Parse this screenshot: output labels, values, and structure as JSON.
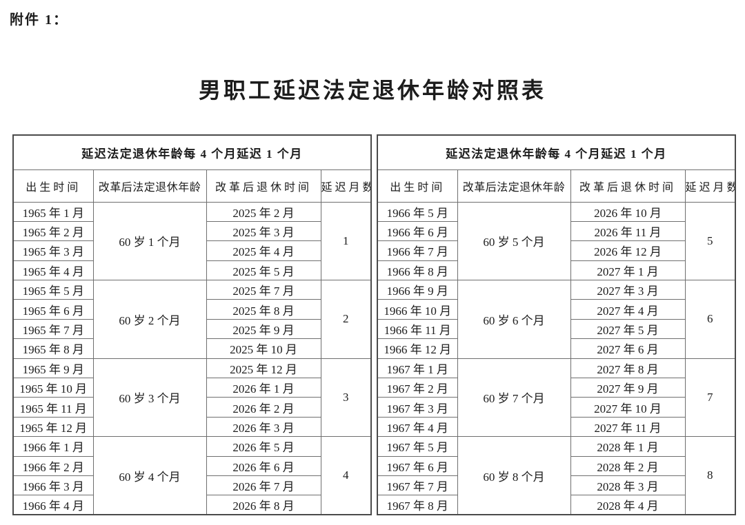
{
  "page": {
    "attachment_label": "附件 1：",
    "title": "男职工延迟法定退休年龄对照表",
    "background_color": "#ffffff",
    "text_color": "#1c1c1c",
    "border_color": "#6e6e6e"
  },
  "tables": [
    {
      "header": "延迟法定退休年龄每 4 个月延迟 1 个月",
      "columns": [
        "出生时间",
        "改革后法定退休年龄",
        "改革后退休时间",
        "延迟月数"
      ],
      "groups": [
        {
          "birth_months": [
            "1965 年 1 月",
            "1965 年 2 月",
            "1965 年 3 月",
            "1965 年 4 月"
          ],
          "retirement_age": "60 岁 1 个月",
          "retirement_months": [
            "2025 年 2 月",
            "2025 年 3 月",
            "2025 年 4 月",
            "2025 年 5 月"
          ],
          "delay_months": "1"
        },
        {
          "birth_months": [
            "1965 年 5 月",
            "1965 年 6 月",
            "1965 年 7 月",
            "1965 年 8 月"
          ],
          "retirement_age": "60 岁 2 个月",
          "retirement_months": [
            "2025 年 7 月",
            "2025 年 8 月",
            "2025 年 9 月",
            "2025 年 10 月"
          ],
          "delay_months": "2"
        },
        {
          "birth_months": [
            "1965 年 9 月",
            "1965 年 10 月",
            "1965 年 11 月",
            "1965 年 12 月"
          ],
          "retirement_age": "60 岁 3 个月",
          "retirement_months": [
            "2025 年 12 月",
            "2026 年 1 月",
            "2026 年 2 月",
            "2026 年 3 月"
          ],
          "delay_months": "3"
        },
        {
          "birth_months": [
            "1966 年 1 月",
            "1966 年 2 月",
            "1966 年 3 月",
            "1966 年 4 月"
          ],
          "retirement_age": "60 岁 4 个月",
          "retirement_months": [
            "2026 年 5 月",
            "2026 年 6 月",
            "2026 年 7 月",
            "2026 年 8 月"
          ],
          "delay_months": "4"
        }
      ]
    },
    {
      "header": "延迟法定退休年龄每 4 个月延迟 1 个月",
      "columns": [
        "出生时间",
        "改革后法定退休年龄",
        "改革后退休时间",
        "延迟月数"
      ],
      "groups": [
        {
          "birth_months": [
            "1966 年 5 月",
            "1966 年 6 月",
            "1966 年 7 月",
            "1966 年 8 月"
          ],
          "retirement_age": "60 岁 5 个月",
          "retirement_months": [
            "2026 年 10 月",
            "2026 年 11 月",
            "2026 年 12 月",
            "2027 年 1 月"
          ],
          "delay_months": "5"
        },
        {
          "birth_months": [
            "1966 年 9 月",
            "1966 年 10 月",
            "1966 年 11 月",
            "1966 年 12 月"
          ],
          "retirement_age": "60 岁 6 个月",
          "retirement_months": [
            "2027 年 3 月",
            "2027 年 4 月",
            "2027 年 5 月",
            "2027 年 6 月"
          ],
          "delay_months": "6"
        },
        {
          "birth_months": [
            "1967 年 1 月",
            "1967 年 2 月",
            "1967 年 3 月",
            "1967 年 4 月"
          ],
          "retirement_age": "60 岁 7 个月",
          "retirement_months": [
            "2027 年 8 月",
            "2027 年 9 月",
            "2027 年 10 月",
            "2027 年 11 月"
          ],
          "delay_months": "7"
        },
        {
          "birth_months": [
            "1967 年 5 月",
            "1967 年 6 月",
            "1967 年 7 月",
            "1967 年 8 月"
          ],
          "retirement_age": "60 岁 8 个月",
          "retirement_months": [
            "2028 年 1 月",
            "2028 年 2 月",
            "2028 年 3 月",
            "2028 年 4 月"
          ],
          "delay_months": "8"
        }
      ]
    }
  ]
}
